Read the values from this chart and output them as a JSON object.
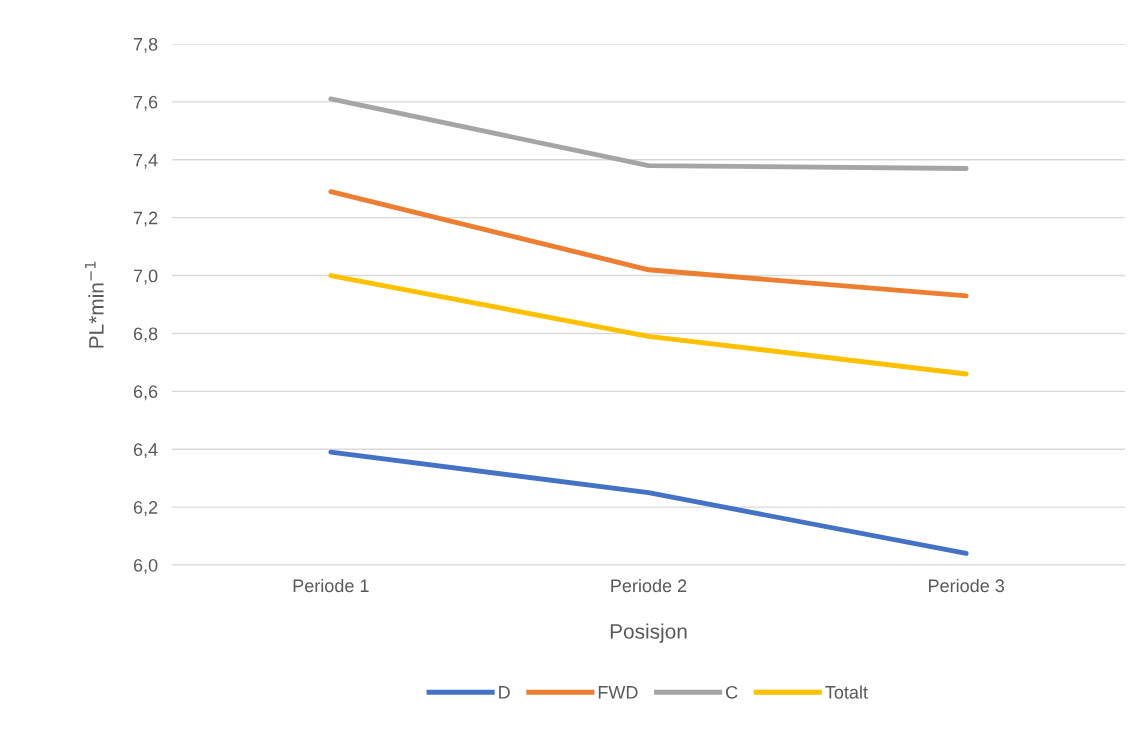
{
  "chart_data": {
    "type": "line",
    "xlabel": "Posisjon",
    "ylabel": "PL*min$^{−1}$",
    "categories": [
      "Periode 1",
      "Periode 2",
      "Periode 3"
    ],
    "series": [
      {
        "name": "D",
        "color": "#4472c4",
        "values": [
          6.39,
          6.25,
          6.04
        ]
      },
      {
        "name": "FWD",
        "color": "#ed7d31",
        "values": [
          7.29,
          7.02,
          6.93
        ]
      },
      {
        "name": "C",
        "color": "#a5a5a5",
        "values": [
          7.61,
          7.38,
          7.37
        ]
      },
      {
        "name": "Totalt",
        "color": "#ffc000",
        "values": [
          7.0,
          6.79,
          6.66
        ]
      }
    ],
    "ylim": [
      6.0,
      7.8
    ],
    "yticks": [
      {
        "value": 6.0,
        "label": "6,0"
      },
      {
        "value": 6.2,
        "label": "6,2"
      },
      {
        "value": 6.4,
        "label": "6,4"
      },
      {
        "value": 6.6,
        "label": "6,6"
      },
      {
        "value": 6.8,
        "label": "6,8"
      },
      {
        "value": 7.0,
        "label": "7,0"
      },
      {
        "value": 7.2,
        "label": "7,2"
      },
      {
        "value": 7.4,
        "label": "7,4"
      },
      {
        "value": 7.6,
        "label": "7,6"
      },
      {
        "value": 7.8,
        "label": "7,8"
      }
    ],
    "grid": "y",
    "legend": "bottom",
    "marker": "none",
    "line_style": "solid"
  }
}
